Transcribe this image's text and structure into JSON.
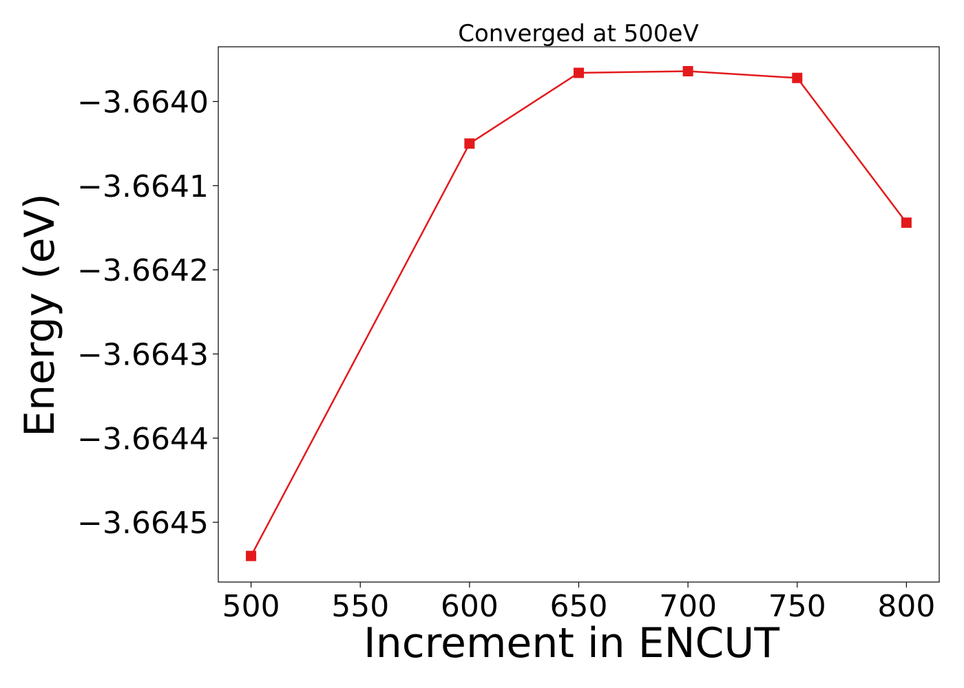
{
  "chart_data": {
    "type": "line",
    "title": "Converged at 500eV",
    "xlabel": "Increment in ENCUT",
    "ylabel": "Energy (eV)",
    "x": [
      500,
      600,
      650,
      700,
      750,
      800
    ],
    "series": [
      {
        "values": [
          -3.66454,
          -3.66405,
          -3.663966,
          -3.663964,
          -3.663972,
          -3.664144
        ],
        "color": "#e31a1c",
        "marker": "square"
      }
    ],
    "xticks": [
      500,
      550,
      600,
      650,
      700,
      750,
      800
    ],
    "xtick_labels": [
      "500",
      "550",
      "600",
      "650",
      "700",
      "750",
      "800"
    ],
    "yticks": [
      -3.6645,
      -3.6644,
      -3.6643,
      -3.6642,
      -3.6641,
      -3.664
    ],
    "ytick_labels": [
      "−3.6645",
      "−3.6644",
      "−3.6643",
      "−3.6642",
      "−3.6641",
      "−3.6640"
    ],
    "xlim": [
      485,
      815
    ],
    "ylim": [
      -3.664571,
      -3.663935
    ],
    "grid": false,
    "legend": false
  }
}
